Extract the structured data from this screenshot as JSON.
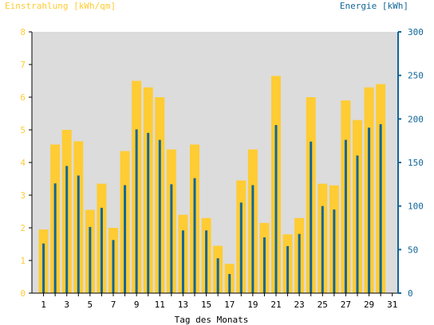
{
  "chart_data": {
    "type": "bar",
    "left_axis_label": "Einstrahlung [kWh/qm]",
    "right_axis_label": "Energie [kWh]",
    "xlabel": "Tag des Monats",
    "x": [
      1,
      2,
      3,
      4,
      5,
      6,
      7,
      8,
      9,
      10,
      11,
      12,
      13,
      14,
      15,
      16,
      17,
      18,
      19,
      20,
      21,
      22,
      23,
      24,
      25,
      26,
      27,
      28,
      29,
      30,
      31
    ],
    "x_tick_labels": [
      "1",
      "3",
      "5",
      "7",
      "9",
      "11",
      "13",
      "15",
      "17",
      "19",
      "21",
      "23",
      "25",
      "27",
      "29",
      "31"
    ],
    "left_ylim": [
      0,
      8
    ],
    "left_yticks": [
      0,
      1,
      2,
      3,
      4,
      5,
      6,
      7,
      8
    ],
    "right_ylim": [
      0,
      300
    ],
    "right_yticks": [
      0,
      50,
      100,
      150,
      200,
      250,
      300
    ],
    "series": [
      {
        "axis": "left",
        "color": "#ffcc33",
        "values": [
          1.95,
          4.55,
          5.0,
          4.65,
          2.55,
          3.35,
          2.0,
          4.35,
          6.5,
          6.3,
          6.0,
          4.4,
          2.4,
          4.55,
          2.3,
          1.45,
          0.9,
          3.45,
          4.4,
          2.15,
          6.65,
          1.8,
          2.3,
          6.0,
          3.35,
          3.3,
          5.9,
          5.3,
          6.3,
          6.4,
          0
        ]
      },
      {
        "axis": "right",
        "color": "#116699",
        "values": [
          57,
          126,
          146,
          135,
          76,
          98,
          61,
          124,
          188,
          184,
          176,
          125,
          72,
          132,
          72,
          40,
          22,
          104,
          124,
          64,
          193,
          54,
          68,
          174,
          100,
          96,
          176,
          158,
          190,
          194,
          0
        ]
      }
    ],
    "background_color": "#dcdcdc",
    "left_axis_color": "#ffcc33",
    "right_axis_color": "#116699",
    "grid": false
  }
}
